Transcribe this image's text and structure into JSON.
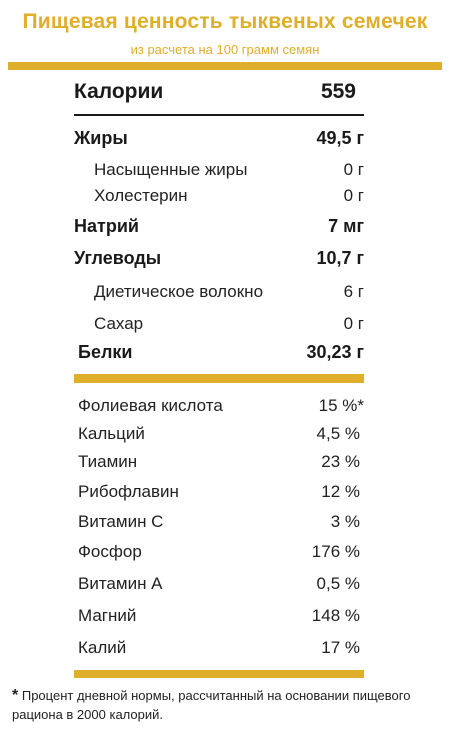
{
  "header": {
    "title": "Пищевая ценность тыквеных семечек",
    "subtitle": "из расчета на 100 грамм семян"
  },
  "calories": {
    "label": "Калории",
    "value": "559"
  },
  "nutrients": [
    {
      "label": "Жиры",
      "value": "49,5 г"
    },
    {
      "label": "Насыщенные жиры",
      "value": "0 г"
    },
    {
      "label": "Холестерин",
      "value": "0 г"
    },
    {
      "label": "Натрий",
      "value": "7 мг"
    },
    {
      "label": "Углеводы",
      "value": "10,7 г"
    },
    {
      "label": "Диетическое волокно",
      "value": "6 г"
    },
    {
      "label": "Сахар",
      "value": "0 г"
    },
    {
      "label": "Белки",
      "value": "30,23 г"
    }
  ],
  "vitamins": [
    {
      "label": "Фолиевая кислота",
      "value": "15 %*"
    },
    {
      "label": "Кальций",
      "value": "4,5 %"
    },
    {
      "label": "Тиамин",
      "value": "23 %"
    },
    {
      "label": "Рибофлавин",
      "value": "12 %"
    },
    {
      "label": "Витамин С",
      "value": "3 %"
    },
    {
      "label": "Фосфор",
      "value": "176 %"
    },
    {
      "label": "Витамин А",
      "value": "0,5 %"
    },
    {
      "label": "Магний",
      "value": "148 %"
    },
    {
      "label": "Калий",
      "value": "17 %"
    }
  ],
  "footnote": {
    "marker": "*",
    "text": "Процент дневной нормы, рассчитанный на основании пищевого рациона в 2000 калорий."
  },
  "colors": {
    "accent": "#dfae2a",
    "text": "#1a1a1a"
  }
}
